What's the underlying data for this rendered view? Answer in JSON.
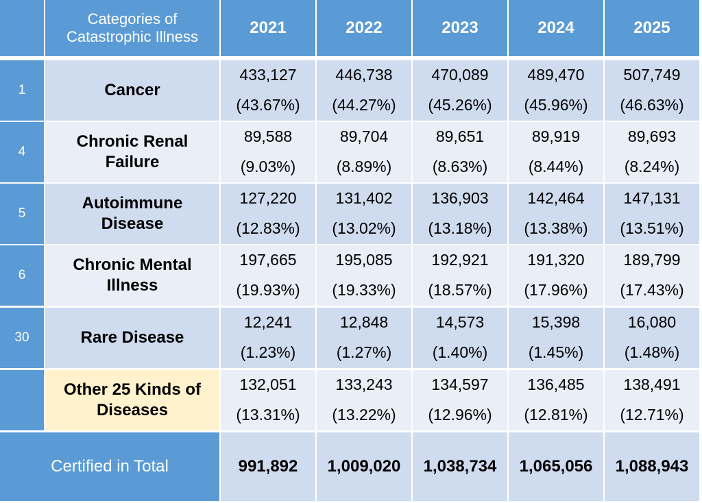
{
  "table": {
    "header": {
      "category": "Categories of Catastrophic Illness",
      "years": [
        "2021",
        "2022",
        "2023",
        "2024",
        "2025"
      ]
    },
    "rows": [
      {
        "number": "1",
        "category": "Cancer",
        "cells": [
          [
            "433,127",
            "(43.67%)"
          ],
          [
            "446,738",
            "(44.27%)"
          ],
          [
            "470,089",
            "(45.26%)"
          ],
          [
            "489,470",
            "(45.96%)"
          ],
          [
            "507,749",
            "(46.63%)"
          ]
        ]
      },
      {
        "number": "4",
        "category": "Chronic Renal Failure",
        "cells": [
          [
            "89,588",
            "(9.03%)"
          ],
          [
            "89,704",
            "(8.89%)"
          ],
          [
            "89,651",
            "(8.63%)"
          ],
          [
            "89,919",
            "(8.44%)"
          ],
          [
            "89,693",
            "(8.24%)"
          ]
        ]
      },
      {
        "number": "5",
        "category": "Autoimmune Disease",
        "cells": [
          [
            "127,220",
            "(12.83%)"
          ],
          [
            "131,402",
            "(13.02%)"
          ],
          [
            "136,903",
            "(13.18%)"
          ],
          [
            "142,464",
            "(13.38%)"
          ],
          [
            "147,131",
            "(13.51%)"
          ]
        ]
      },
      {
        "number": "6",
        "category": "Chronic Mental Illness",
        "cells": [
          [
            "197,665",
            "(19.93%)"
          ],
          [
            "195,085",
            "(19.33%)"
          ],
          [
            "192,921",
            "(18.57%)"
          ],
          [
            "191,320",
            "(17.96%)"
          ],
          [
            "189,799",
            "(17.43%)"
          ]
        ]
      },
      {
        "number": "30",
        "category": "Rare Disease",
        "cells": [
          [
            "12,241",
            "(1.23%)"
          ],
          [
            "12,848",
            "(1.27%)"
          ],
          [
            "14,573",
            "(1.40%)"
          ],
          [
            "15,398",
            "(1.45%)"
          ],
          [
            "16,080",
            "(1.48%)"
          ]
        ]
      },
      {
        "category": "Other 25 Kinds of Diseases",
        "cells": [
          [
            "132,051",
            "(13.31%)"
          ],
          [
            "133,243",
            "(13.22%)"
          ],
          [
            "134,597",
            "(12.96%)"
          ],
          [
            "136,485",
            "(12.81%)"
          ],
          [
            "138,491",
            "(12.71%)"
          ]
        ]
      }
    ],
    "total": {
      "label": "Certified in Total",
      "cells": [
        "991,892",
        "1,009,020",
        "1,038,734",
        "1,065,056",
        "1,088,943"
      ]
    }
  }
}
